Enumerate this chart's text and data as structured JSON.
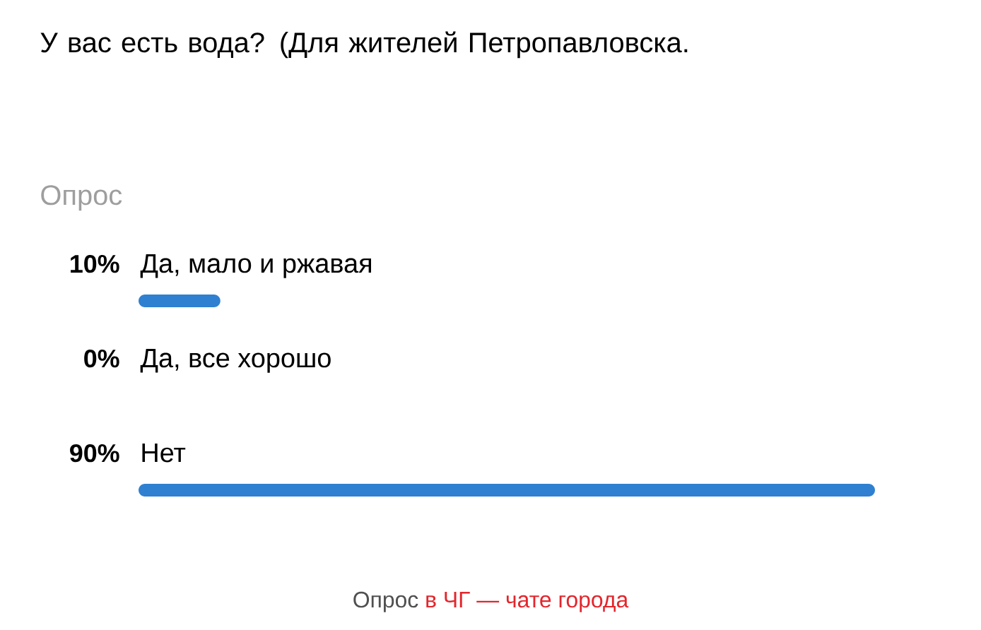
{
  "chart_data": {
    "type": "bar",
    "orientation": "horizontal",
    "title": "У вас есть вода? (Для жителей Петропавловска.",
    "subtitle": "Опрос",
    "categories": [
      "Да, мало и ржавая",
      "Да, все хорошо",
      "Нет"
    ],
    "values": [
      10,
      0,
      90
    ],
    "value_labels": [
      "10%",
      "0%",
      "90%"
    ],
    "color": "#2f80d1",
    "xlim": [
      0,
      90
    ],
    "annotations": [
      "Опрос",
      "в ЧГ — чате города"
    ]
  }
}
